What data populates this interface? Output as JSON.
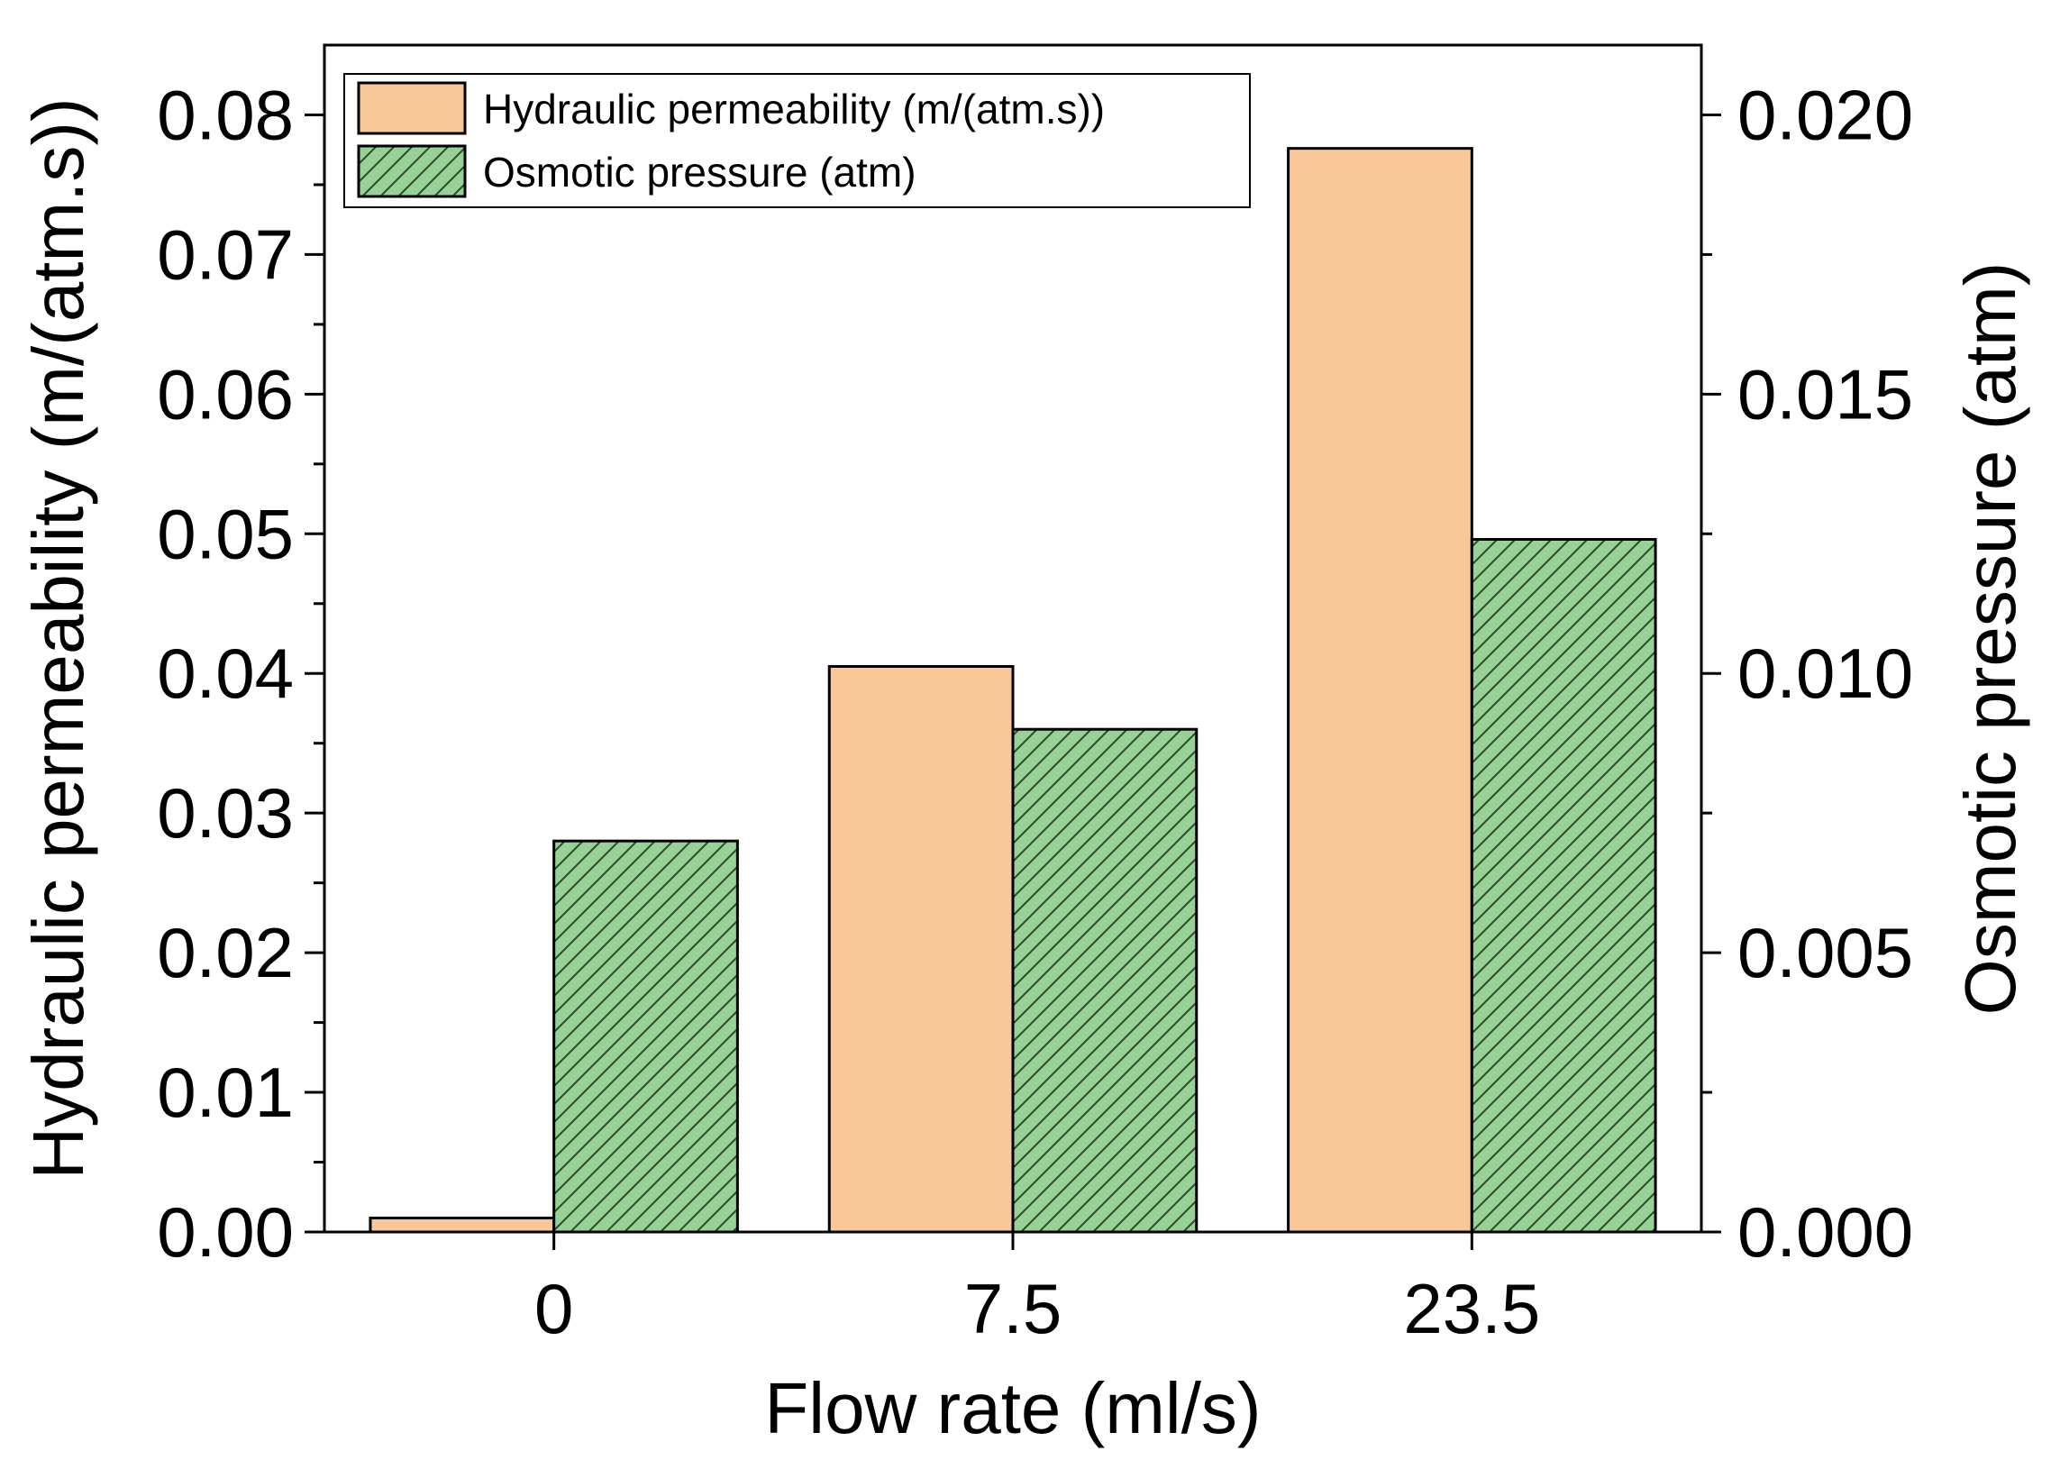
{
  "chart_data": {
    "type": "bar",
    "xlabel": "Flow rate (ml/s)",
    "ylabel": "Hydraulic permeability (m/(atm.s))",
    "y2label": "Osmotic pressure (atm)",
    "categories": [
      "0",
      "7.5",
      "23.5"
    ],
    "ylim": [
      0,
      0.085
    ],
    "y2lim": [
      0,
      0.02125
    ],
    "yticks": [
      "0.00",
      "0.01",
      "0.02",
      "0.03",
      "0.04",
      "0.05",
      "0.06",
      "0.07",
      "0.08"
    ],
    "y2ticks": [
      "0.000",
      "0.005",
      "0.010",
      "0.015",
      "0.020"
    ],
    "legend_position": "top-left",
    "series": [
      {
        "name": "Hydraulic permeability (m/(atm.s))",
        "axis": "left",
        "values": [
          0.001,
          0.0405,
          0.0776
        ],
        "color": "#FAC898",
        "pattern": "solid"
      },
      {
        "name": "Osmotic pressure (atm)",
        "axis": "right",
        "values": [
          0.007,
          0.009,
          0.0124
        ],
        "color": "#98D195",
        "pattern": "diagonal-hatch"
      }
    ]
  }
}
